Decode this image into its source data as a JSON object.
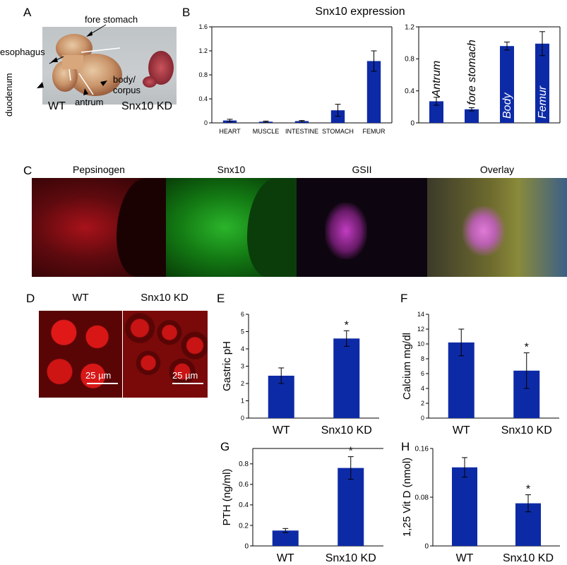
{
  "panels": {
    "A": {
      "letter": "A",
      "labels": {
        "fore_stomach": "fore stomach",
        "esophagus": "esophagus",
        "duodenum": "duodenum",
        "body_corpus_1": "body/",
        "body_corpus_2": "corpus",
        "antrum": "antrum",
        "wt": "WT",
        "kd": "Snx10 KD"
      }
    },
    "B": {
      "letter": "B",
      "title": "Snx10 expression"
    },
    "C": {
      "letter": "C",
      "stains": [
        "Pepsinogen",
        "Snx10",
        "GSII",
        "Overlay"
      ]
    },
    "D": {
      "letter": "D",
      "wt": "WT",
      "kd": "Snx10 KD",
      "scale_wt": "25 µm",
      "scale_kd": "25 µm"
    },
    "E": {
      "letter": "E"
    },
    "F": {
      "letter": "F"
    },
    "G": {
      "letter": "G"
    },
    "H": {
      "letter": "H"
    }
  },
  "colors": {
    "bar": "#0d2aa6",
    "axis": "#000000"
  },
  "chart_data": [
    {
      "id": "B-left",
      "type": "bar",
      "title": "Snx10 expression",
      "categories": [
        "HEART",
        "MUSCLE",
        "INTESTINE",
        "STOMACH",
        "FEMUR"
      ],
      "values": [
        0.04,
        0.02,
        0.03,
        0.21,
        1.03
      ],
      "errors": [
        0.02,
        0.01,
        0.01,
        0.1,
        0.17
      ],
      "ylim": [
        0,
        1.6
      ],
      "yticks": [
        "0",
        "0.4",
        "0.8",
        "1.2",
        "1.6"
      ],
      "grid": false
    },
    {
      "id": "B-right",
      "type": "bar",
      "categories": [
        "Antrum",
        "fore stomach",
        "Body",
        "Femur"
      ],
      "values": [
        0.27,
        0.17,
        0.96,
        0.99
      ],
      "errors": [
        0.05,
        0.02,
        0.05,
        0.15
      ],
      "ylim": [
        0,
        1.2
      ],
      "yticks": [
        "0",
        "0.4",
        "0.8",
        "1.2"
      ],
      "grid": false
    },
    {
      "id": "E",
      "type": "bar",
      "categories": [
        "WT",
        "Snx10 KD"
      ],
      "values": [
        2.45,
        4.6
      ],
      "errors": [
        0.45,
        0.45
      ],
      "ylabel": "Gastric pH",
      "ylim": [
        0,
        6
      ],
      "yticks": [
        "0",
        "1",
        "2",
        "3",
        "4",
        "5",
        "6"
      ],
      "significance": [
        "",
        "*"
      ]
    },
    {
      "id": "F",
      "type": "bar",
      "categories": [
        "WT",
        "Snx10 KD"
      ],
      "values": [
        10.2,
        6.4
      ],
      "errors": [
        1.8,
        2.4
      ],
      "ylabel": "Calcium mg/dl",
      "ylim": [
        0,
        14
      ],
      "yticks": [
        "0",
        "2",
        "4",
        "6",
        "8",
        "10",
        "12",
        "14"
      ],
      "significance": [
        "",
        "*"
      ]
    },
    {
      "id": "G",
      "type": "bar",
      "categories": [
        "WT",
        "Snx10 KD"
      ],
      "values": [
        0.15,
        0.76
      ],
      "errors": [
        0.02,
        0.11
      ],
      "ylabel": "PTH (ng/ml)",
      "ylim": [
        0,
        0.95
      ],
      "yticks": [
        "0",
        "0.2",
        "0.4",
        "0.6",
        "0.8"
      ],
      "significance": [
        "",
        "*"
      ]
    },
    {
      "id": "H",
      "type": "bar",
      "categories": [
        "WT",
        "Snx10 KD"
      ],
      "values": [
        0.129,
        0.07
      ],
      "errors": [
        0.016,
        0.014
      ],
      "ylabel": "1,25 Vit D (nmol)",
      "ylim": [
        0,
        0.16
      ],
      "yticks": [
        "0",
        "0.08",
        "0.16"
      ],
      "significance": [
        "",
        "*"
      ]
    }
  ]
}
